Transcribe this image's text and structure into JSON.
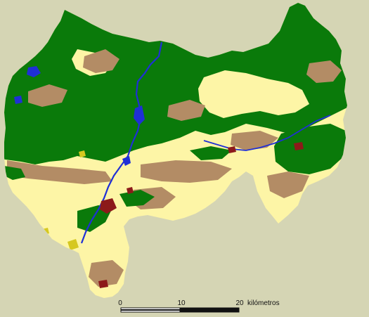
{
  "colors": {
    "background": "#d5d5b4",
    "farmland": "#fdf5a6",
    "forest": "#0a7a0a",
    "scrub": "#b38c65",
    "water": "#1f2fd6",
    "urban": "#8c1a1a",
    "other": "#d6c820",
    "scale_dark": "#111111",
    "scale_light": "#ffffff"
  },
  "scale_bar": {
    "labels": [
      "0",
      "10",
      "20"
    ],
    "unit": "kilómetros"
  }
}
